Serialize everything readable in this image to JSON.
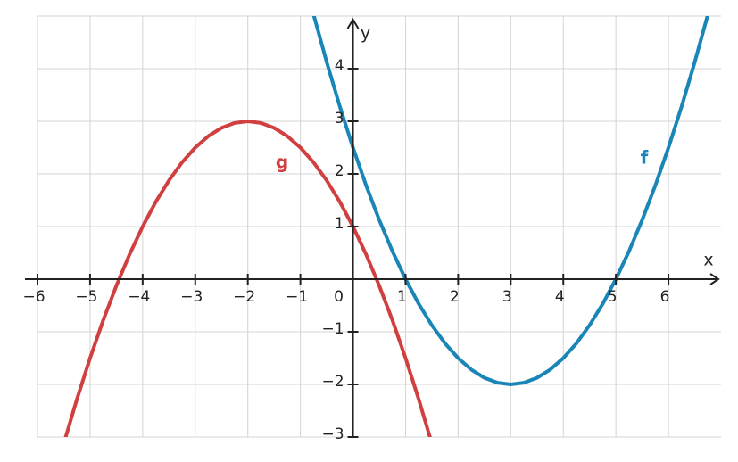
{
  "chart_data": {
    "type": "line",
    "x_label": "x",
    "y_label": "y",
    "xlim": [
      -6,
      7
    ],
    "ylim": [
      -3,
      5
    ],
    "xticks": [
      {
        "value": -6,
        "label": "−6"
      },
      {
        "value": -5,
        "label": "−5"
      },
      {
        "value": -4,
        "label": "−4"
      },
      {
        "value": -3,
        "label": "−3"
      },
      {
        "value": -2,
        "label": "−2"
      },
      {
        "value": -1,
        "label": "−1"
      },
      0,
      1,
      2,
      3,
      4,
      5,
      6
    ],
    "yticks": [
      {
        "value": -3,
        "label": "−3"
      },
      {
        "value": -2,
        "label": "−2"
      },
      {
        "value": -1,
        "label": "−1"
      },
      1,
      2,
      3,
      4
    ],
    "grid": true,
    "series": [
      {
        "name": "f",
        "color": "#1a86b8",
        "x": [
          -0.75,
          -0.5,
          -0.25,
          0,
          0.25,
          0.5,
          0.75,
          1,
          1.25,
          1.5,
          1.75,
          2,
          2.25,
          2.5,
          2.75,
          3,
          3.25,
          3.5,
          3.75,
          4,
          4.25,
          4.5,
          4.75,
          5,
          5.25,
          5.5,
          5.75,
          6,
          6.25,
          6.5,
          6.75
        ],
        "values": [
          5.03125,
          4.125,
          3.28125,
          2.5,
          1.78125,
          1.125,
          0.53125,
          0,
          -0.46875,
          -0.875,
          -1.21875,
          -1.5,
          -1.71875,
          -1.875,
          -1.96875,
          -2,
          -1.96875,
          -1.875,
          -1.71875,
          -1.5,
          -1.21875,
          -0.875,
          -0.46875,
          0,
          0.53125,
          1.125,
          1.78125,
          2.5,
          3.28125,
          4.125,
          5.03125
        ]
      },
      {
        "name": "g",
        "color": "#d04040",
        "x": [
          -5.5,
          -5.25,
          -5,
          -4.75,
          -4.5,
          -4.25,
          -4,
          -3.75,
          -3.5,
          -3.25,
          -3,
          -2.75,
          -2.5,
          -2.25,
          -2,
          -1.75,
          -1.5,
          -1.25,
          -1,
          -0.75,
          -0.5,
          -0.25,
          0,
          0.25,
          0.5,
          0.75,
          1,
          1.25,
          1.5
        ],
        "values": [
          -3.125,
          -2.28125,
          -1.5,
          -0.78125,
          -0.125,
          0.46875,
          1,
          1.46875,
          1.875,
          2.21875,
          2.5,
          2.71875,
          2.875,
          2.96875,
          3,
          2.96875,
          2.875,
          2.71875,
          2.5,
          2.21875,
          1.875,
          1.46875,
          1,
          0.46875,
          -0.125,
          -0.78125,
          -1.5,
          -2.28125,
          -3.125
        ]
      }
    ]
  }
}
